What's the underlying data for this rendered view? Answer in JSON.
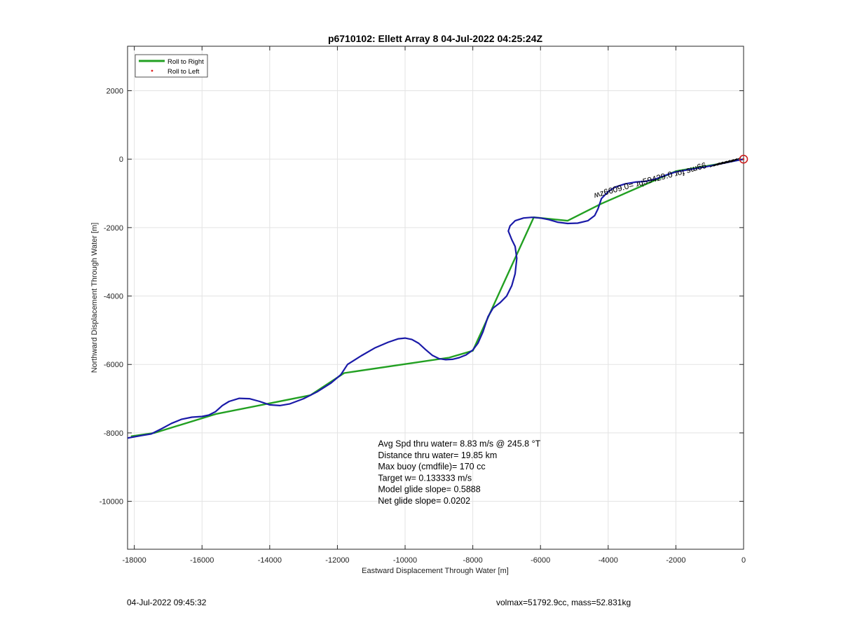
{
  "chart_data": {
    "type": "line",
    "title": "p6710102: Ellett Array 8 04-Jul-2022 04:25:24Z",
    "xlabel": "Eastward Displacement Through Water [m]",
    "ylabel": "Northward Displacement Through Water [m]",
    "xlim": [
      -18200,
      0
    ],
    "ylim": [
      -11400,
      3300
    ],
    "xticks": [
      -18000,
      -16000,
      -14000,
      -12000,
      -10000,
      -8000,
      -6000,
      -4000,
      -2000,
      0
    ],
    "yticks": [
      -10000,
      -8000,
      -6000,
      -4000,
      -2000,
      0,
      2000
    ],
    "grid": true,
    "legend_position": "top-left",
    "series": [
      {
        "name": "Roll to Right",
        "color": "#22a022",
        "x": [
          -18100,
          -17400,
          -15600,
          -12800,
          -11800,
          -8700,
          -8000,
          -6200,
          -5200,
          -4200,
          -2000,
          -800,
          0
        ],
        "y": [
          -8100,
          -8000,
          -7450,
          -6900,
          -6250,
          -5800,
          -5600,
          -1700,
          -1800,
          -1300,
          -350,
          -150,
          0
        ]
      },
      {
        "name": "Roll to Left",
        "color": "#e02020",
        "x": [
          0
        ],
        "y": [
          0
        ]
      }
    ],
    "track": {
      "color": "#1a1aa8",
      "x": [
        -18200,
        -17800,
        -17500,
        -17200,
        -16900,
        -16600,
        -16300,
        -16000,
        -15800,
        -15600,
        -15400,
        -15200,
        -14900,
        -14600,
        -14300,
        -14000,
        -13700,
        -13400,
        -13000,
        -12600,
        -12200,
        -11900,
        -11700,
        -11300,
        -10900,
        -10500,
        -10200,
        -10000,
        -9800,
        -9600,
        -9400,
        -9200,
        -9000,
        -8800,
        -8600,
        -8400,
        -8200,
        -8000,
        -7850,
        -7700,
        -7550,
        -7400,
        -7200,
        -7000,
        -6850,
        -6750,
        -6700,
        -6750,
        -6850,
        -6950,
        -6900,
        -6750,
        -6500,
        -6250,
        -6000,
        -5750,
        -5500,
        -5200,
        -4900,
        -4600,
        -4400,
        -4300,
        -4200,
        -4000,
        -3800,
        -3500,
        -3200,
        -2900,
        -2600,
        -2300,
        -2000,
        -1700,
        -1400,
        -1100,
        -800,
        -500,
        -200,
        0
      ],
      "y": [
        -8150,
        -8080,
        -8030,
        -7880,
        -7720,
        -7600,
        -7540,
        -7520,
        -7480,
        -7380,
        -7200,
        -7080,
        -6990,
        -7000,
        -7080,
        -7180,
        -7200,
        -7150,
        -7000,
        -6800,
        -6550,
        -6300,
        -6000,
        -5750,
        -5520,
        -5350,
        -5250,
        -5230,
        -5270,
        -5380,
        -5560,
        -5730,
        -5830,
        -5860,
        -5850,
        -5800,
        -5720,
        -5580,
        -5380,
        -5050,
        -4600,
        -4350,
        -4200,
        -4000,
        -3700,
        -3350,
        -2900,
        -2550,
        -2350,
        -2100,
        -1950,
        -1800,
        -1720,
        -1700,
        -1720,
        -1770,
        -1840,
        -1880,
        -1870,
        -1800,
        -1650,
        -1450,
        -1150,
        -950,
        -820,
        -720,
        -670,
        -650,
        -580,
        -470,
        -370,
        -320,
        -270,
        -220,
        -160,
        -100,
        -40,
        0
      ]
    },
    "end_marker": {
      "x": 0,
      "y": 0,
      "color": "#cc2020"
    },
    "stats_lines": [
      "Avg Spd thru water=  8.83 m/s @ 245.8 °T",
      "Distance thru water= 19.85 km",
      "Max buoy (cmdfile)= 170 cc",
      "Target w= 0.133333 m/s",
      "Model glide slope= 0.5888",
      "Net glide slope= 0.0202"
    ],
    "stats_anchor": {
      "x": -10800,
      "y": -8400
    },
    "annotation": {
      "text": "ʍᴢ6609.0= ɹɥ59429.0 ɹoɟ sɯ66",
      "x": -4400,
      "y": -1130
    }
  },
  "footer": {
    "timestamp": "04-Jul-2022 09:45:32",
    "summary": "volmax=51792.9cc, mass=52.831kg"
  }
}
